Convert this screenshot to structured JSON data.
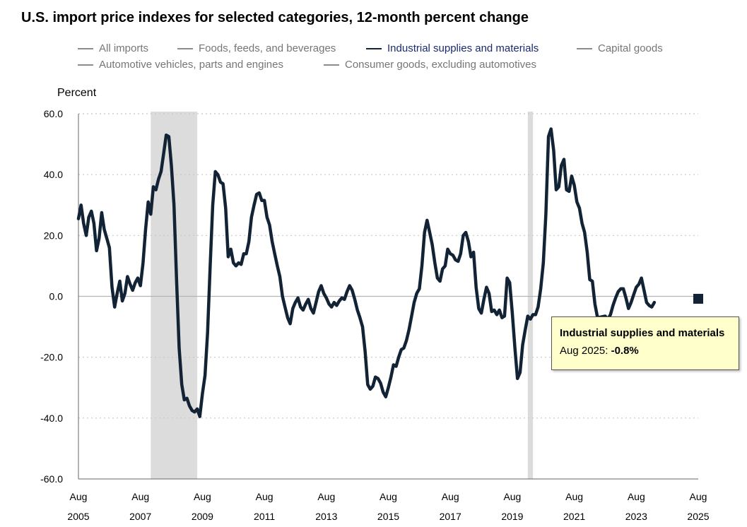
{
  "chart_data": {
    "type": "line",
    "title": "U.S. import price indexes for selected categories, 12-month percent change",
    "ylabel": "Percent",
    "xlabel": "",
    "ylim": [
      -60,
      60
    ],
    "yticks": [
      "60.0",
      "40.0",
      "20.0",
      "0.0",
      "-20.0",
      "-40.0",
      "-60.0"
    ],
    "ytick_values": [
      60,
      40,
      20,
      0,
      -20,
      -40,
      -60
    ],
    "xticks": [
      {
        "month": "Aug",
        "year": "2005",
        "date": "2005-08"
      },
      {
        "month": "Aug",
        "year": "2007",
        "date": "2007-08"
      },
      {
        "month": "Aug",
        "year": "2009",
        "date": "2009-08"
      },
      {
        "month": "Aug",
        "year": "2011",
        "date": "2011-08"
      },
      {
        "month": "Aug",
        "year": "2013",
        "date": "2013-08"
      },
      {
        "month": "Aug",
        "year": "2015",
        "date": "2015-08"
      },
      {
        "month": "Aug",
        "year": "2017",
        "date": "2017-08"
      },
      {
        "month": "Aug",
        "year": "2019",
        "date": "2019-08"
      },
      {
        "month": "Aug",
        "year": "2021",
        "date": "2021-08"
      },
      {
        "month": "Aug",
        "year": "2023",
        "date": "2023-08"
      },
      {
        "month": "Aug",
        "year": "2025",
        "date": "2025-08"
      }
    ],
    "x_range": [
      "2005-08",
      "2025-08"
    ],
    "grid": "horizontal dotted",
    "recessions": [
      {
        "start": "2007-12",
        "end": "2009-06"
      },
      {
        "start": "2020-02",
        "end": "2020-04"
      }
    ],
    "legend": [
      {
        "name": "All imports",
        "color": "#8c8c8c",
        "active": false
      },
      {
        "name": "Foods, feeds, and beverages",
        "color": "#8c8c8c",
        "active": false
      },
      {
        "name": "Industrial supplies and materials",
        "color": "#132336",
        "active": true
      },
      {
        "name": "Capital goods",
        "color": "#8c8c8c",
        "active": false
      },
      {
        "name": "Automotive vehicles, parts and engines",
        "color": "#8c8c8c",
        "active": false
      },
      {
        "name": "Consumer goods, excluding automotives",
        "color": "#8c8c8c",
        "active": false
      }
    ],
    "series": [
      {
        "name": "Industrial supplies and materials",
        "color": "#132336",
        "points": [
          [
            "2005-08",
            25.5
          ],
          [
            "2005-09",
            30.0
          ],
          [
            "2005-10",
            24.0
          ],
          [
            "2005-11",
            20.0
          ],
          [
            "2005-12",
            26.0
          ],
          [
            "2006-01",
            28.0
          ],
          [
            "2006-02",
            24.0
          ],
          [
            "2006-03",
            15.0
          ],
          [
            "2006-04",
            19.0
          ],
          [
            "2006-05",
            27.5
          ],
          [
            "2006-06",
            22.0
          ],
          [
            "2006-07",
            19.0
          ],
          [
            "2006-08",
            16.0
          ],
          [
            "2006-09",
            3.0
          ],
          [
            "2006-10",
            -3.5
          ],
          [
            "2006-11",
            1.0
          ],
          [
            "2006-12",
            5.0
          ],
          [
            "2007-01",
            -1.5
          ],
          [
            "2007-02",
            1.0
          ],
          [
            "2007-03",
            6.5
          ],
          [
            "2007-04",
            4.0
          ],
          [
            "2007-05",
            2.0
          ],
          [
            "2007-06",
            4.5
          ],
          [
            "2007-07",
            6.0
          ],
          [
            "2007-08",
            3.5
          ],
          [
            "2007-09",
            11.0
          ],
          [
            "2007-10",
            22.0
          ],
          [
            "2007-11",
            31.0
          ],
          [
            "2007-12",
            27.0
          ],
          [
            "2008-01",
            36.0
          ],
          [
            "2008-02",
            35.0
          ],
          [
            "2008-03",
            38.5
          ],
          [
            "2008-04",
            41.0
          ],
          [
            "2008-05",
            47.0
          ],
          [
            "2008-06",
            53.0
          ],
          [
            "2008-07",
            52.5
          ],
          [
            "2008-08",
            43.0
          ],
          [
            "2008-09",
            30.0
          ],
          [
            "2008-10",
            5.0
          ],
          [
            "2008-11",
            -17.0
          ],
          [
            "2008-12",
            -29.0
          ],
          [
            "2009-01",
            -34.0
          ],
          [
            "2009-02",
            -33.5
          ],
          [
            "2009-03",
            -36.0
          ],
          [
            "2009-04",
            -37.5
          ],
          [
            "2009-05",
            -38.0
          ],
          [
            "2009-06",
            -37.0
          ],
          [
            "2009-07",
            -39.5
          ],
          [
            "2009-08",
            -32.0
          ],
          [
            "2009-09",
            -26.0
          ],
          [
            "2009-10",
            -12.0
          ],
          [
            "2009-11",
            10.0
          ],
          [
            "2009-12",
            30.0
          ],
          [
            "2010-01",
            41.0
          ],
          [
            "2010-02",
            40.0
          ],
          [
            "2010-03",
            37.5
          ],
          [
            "2010-04",
            37.0
          ],
          [
            "2010-05",
            29.0
          ],
          [
            "2010-06",
            13.0
          ],
          [
            "2010-07",
            15.5
          ],
          [
            "2010-08",
            11.0
          ],
          [
            "2010-09",
            10.0
          ],
          [
            "2010-10",
            11.0
          ],
          [
            "2010-11",
            10.5
          ],
          [
            "2010-12",
            14.0
          ],
          [
            "2011-01",
            14.0
          ],
          [
            "2011-02",
            18.0
          ],
          [
            "2011-03",
            26.0
          ],
          [
            "2011-04",
            30.0
          ],
          [
            "2011-05",
            33.5
          ],
          [
            "2011-06",
            34.0
          ],
          [
            "2011-07",
            31.5
          ],
          [
            "2011-08",
            31.5
          ],
          [
            "2011-09",
            26.0
          ],
          [
            "2011-10",
            23.5
          ],
          [
            "2011-11",
            18.0
          ],
          [
            "2011-12",
            14.0
          ],
          [
            "2012-01",
            10.0
          ],
          [
            "2012-02",
            6.5
          ],
          [
            "2012-03",
            0.0
          ],
          [
            "2012-04",
            -3.5
          ],
          [
            "2012-05",
            -7.0
          ],
          [
            "2012-06",
            -9.0
          ],
          [
            "2012-07",
            -4.0
          ],
          [
            "2012-08",
            -2.0
          ],
          [
            "2012-09",
            -0.5
          ],
          [
            "2012-10",
            -3.5
          ],
          [
            "2012-11",
            -4.5
          ],
          [
            "2012-12",
            -2.5
          ],
          [
            "2013-01",
            -1.0
          ],
          [
            "2013-02",
            -4.0
          ],
          [
            "2013-03",
            -5.5
          ],
          [
            "2013-04",
            -2.0
          ],
          [
            "2013-05",
            1.5
          ],
          [
            "2013-06",
            3.5
          ],
          [
            "2013-07",
            1.0
          ],
          [
            "2013-08",
            -0.5
          ],
          [
            "2013-09",
            -2.5
          ],
          [
            "2013-10",
            -3.5
          ],
          [
            "2013-11",
            -2.0
          ],
          [
            "2013-12",
            -3.0
          ],
          [
            "2014-01",
            -1.5
          ],
          [
            "2014-02",
            -0.5
          ],
          [
            "2014-03",
            -1.0
          ],
          [
            "2014-04",
            1.5
          ],
          [
            "2014-05",
            3.5
          ],
          [
            "2014-06",
            2.0
          ],
          [
            "2014-07",
            -1.0
          ],
          [
            "2014-08",
            -4.5
          ],
          [
            "2014-09",
            -7.0
          ],
          [
            "2014-10",
            -10.0
          ],
          [
            "2014-11",
            -18.0
          ],
          [
            "2014-12",
            -29.0
          ],
          [
            "2015-01",
            -30.5
          ],
          [
            "2015-02",
            -29.5
          ],
          [
            "2015-03",
            -26.5
          ],
          [
            "2015-04",
            -27.0
          ],
          [
            "2015-05",
            -28.5
          ],
          [
            "2015-06",
            -31.5
          ],
          [
            "2015-07",
            -33.0
          ],
          [
            "2015-08",
            -30.0
          ],
          [
            "2015-09",
            -26.5
          ],
          [
            "2015-10",
            -22.5
          ],
          [
            "2015-11",
            -23.0
          ],
          [
            "2015-12",
            -20.0
          ],
          [
            "2016-01",
            -17.5
          ],
          [
            "2016-02",
            -17.0
          ],
          [
            "2016-03",
            -14.5
          ],
          [
            "2016-04",
            -11.0
          ],
          [
            "2016-05",
            -6.5
          ],
          [
            "2016-06",
            -2.0
          ],
          [
            "2016-07",
            1.0
          ],
          [
            "2016-08",
            2.5
          ],
          [
            "2016-09",
            10.0
          ],
          [
            "2016-10",
            21.0
          ],
          [
            "2016-11",
            25.0
          ],
          [
            "2016-12",
            21.0
          ],
          [
            "2017-01",
            17.0
          ],
          [
            "2017-02",
            11.0
          ],
          [
            "2017-03",
            6.0
          ],
          [
            "2017-04",
            5.0
          ],
          [
            "2017-05",
            9.0
          ],
          [
            "2017-06",
            10.0
          ],
          [
            "2017-07",
            15.5
          ],
          [
            "2017-08",
            14.0
          ],
          [
            "2017-09",
            13.5
          ],
          [
            "2017-10",
            12.0
          ],
          [
            "2017-11",
            11.5
          ],
          [
            "2017-12",
            14.0
          ],
          [
            "2018-01",
            20.0
          ],
          [
            "2018-02",
            21.0
          ],
          [
            "2018-03",
            18.0
          ],
          [
            "2018-04",
            13.0
          ],
          [
            "2018-05",
            14.5
          ],
          [
            "2018-06",
            3.0
          ],
          [
            "2018-07",
            -4.0
          ],
          [
            "2018-08",
            -5.5
          ],
          [
            "2018-09",
            -1.0
          ],
          [
            "2018-10",
            3.0
          ],
          [
            "2018-11",
            1.0
          ],
          [
            "2018-12",
            -5.0
          ],
          [
            "2019-01",
            -4.5
          ],
          [
            "2019-02",
            -6.0
          ],
          [
            "2019-03",
            -4.5
          ],
          [
            "2019-04",
            -7.0
          ],
          [
            "2019-05",
            -6.5
          ],
          [
            "2019-06",
            6.0
          ],
          [
            "2019-07",
            4.5
          ],
          [
            "2019-08",
            -5.5
          ],
          [
            "2019-09",
            -17.0
          ],
          [
            "2019-10",
            -27.0
          ],
          [
            "2019-11",
            -25.0
          ],
          [
            "2019-12",
            -16.0
          ],
          [
            "2020-01",
            -11.0
          ],
          [
            "2020-02",
            -6.5
          ],
          [
            "2020-03",
            -7.5
          ],
          [
            "2020-04",
            -6.0
          ],
          [
            "2020-05",
            -6.0
          ],
          [
            "2020-06",
            -3.5
          ],
          [
            "2020-07",
            2.5
          ],
          [
            "2020-08",
            11.0
          ],
          [
            "2020-09",
            27.0
          ],
          [
            "2020-10",
            52.5
          ],
          [
            "2020-11",
            55.0
          ],
          [
            "2020-12",
            48.0
          ],
          [
            "2021-01",
            35.0
          ],
          [
            "2021-02",
            36.0
          ],
          [
            "2021-03",
            43.0
          ],
          [
            "2021-04",
            45.0
          ],
          [
            "2021-05",
            35.0
          ],
          [
            "2021-06",
            34.5
          ],
          [
            "2021-07",
            39.5
          ],
          [
            "2021-08",
            36.5
          ],
          [
            "2021-09",
            31.0
          ],
          [
            "2021-10",
            29.0
          ],
          [
            "2021-11",
            24.0
          ],
          [
            "2021-12",
            21.0
          ],
          [
            "2022-01",
            14.5
          ],
          [
            "2022-02",
            5.5
          ],
          [
            "2022-03",
            5.0
          ],
          [
            "2022-04",
            -2.5
          ],
          [
            "2022-05",
            -7.0
          ],
          [
            "2022-08",
            -6.5
          ],
          [
            "2022-09",
            -7.5
          ],
          [
            "2022-10",
            -6.0
          ],
          [
            "2022-11",
            -3.0
          ],
          [
            "2022-12",
            -0.5
          ],
          [
            "2023-01",
            1.5
          ],
          [
            "2023-02",
            2.5
          ],
          [
            "2023-03",
            2.5
          ],
          [
            "2023-04",
            -0.5
          ],
          [
            "2023-05",
            -4.0
          ],
          [
            "2023-06",
            -2.0
          ],
          [
            "2023-07",
            0.5
          ],
          [
            "2023-08",
            3.0
          ],
          [
            "2023-09",
            4.0
          ],
          [
            "2023-10",
            6.0
          ],
          [
            "2023-11",
            2.0
          ],
          [
            "2023-12",
            -2.0
          ],
          [
            "2024-01",
            -3.0
          ],
          [
            "2024-02",
            -3.5
          ],
          [
            "2024-03",
            -2.0
          ]
        ]
      }
    ],
    "highlight": {
      "date": "2025-08",
      "value": -0.8
    }
  },
  "tooltip": {
    "title": "Industrial supplies and materials",
    "date_label": "Aug 2025:",
    "value_label": "-0.8%"
  }
}
